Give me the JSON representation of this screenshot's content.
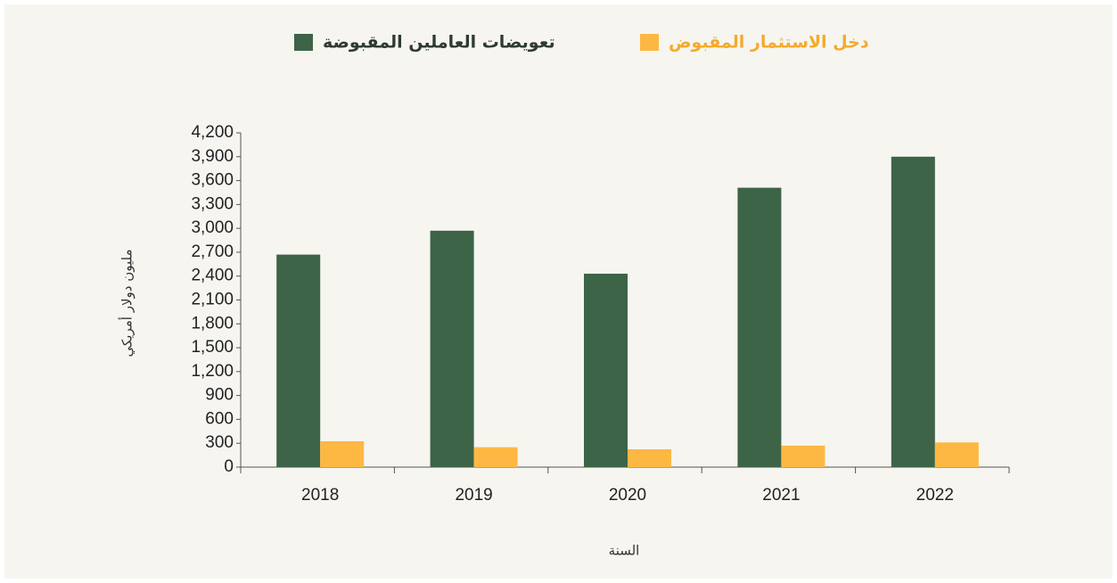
{
  "chart_data": {
    "type": "bar",
    "categories": [
      "2018",
      "2019",
      "2020",
      "2021",
      "2022"
    ],
    "series": [
      {
        "name": "تعويضات العاملين المقبوضة",
        "color": "#3d6447",
        "values": [
          2670,
          2970,
          2430,
          3510,
          3900
        ]
      },
      {
        "name": "دخل الاستثمار المقبوض",
        "color": "#fdb843",
        "values": [
          325,
          250,
          224,
          270,
          310
        ]
      }
    ],
    "ylim": [
      0,
      4200
    ],
    "yticks": [
      0,
      300,
      600,
      900,
      {
        "value": 1200,
        "label": "1,200"
      },
      {
        "value": 1500,
        "label": "1,500"
      },
      {
        "value": 1800,
        "label": "1,800"
      },
      {
        "value": 2100,
        "label": "2,100"
      },
      {
        "value": 2400,
        "label": "2,400"
      },
      {
        "value": 2700,
        "label": "2,700"
      },
      {
        "value": 3000,
        "label": "3,000"
      },
      {
        "value": 3300,
        "label": "3,300"
      },
      {
        "value": 3600,
        "label": "3,600"
      },
      {
        "value": 3900,
        "label": "3,900"
      },
      {
        "value": 4200,
        "label": "4,200"
      }
    ],
    "y_label": "مليون دولار أمريكي",
    "x_label": "السنة",
    "grid": false,
    "legend": "top"
  }
}
